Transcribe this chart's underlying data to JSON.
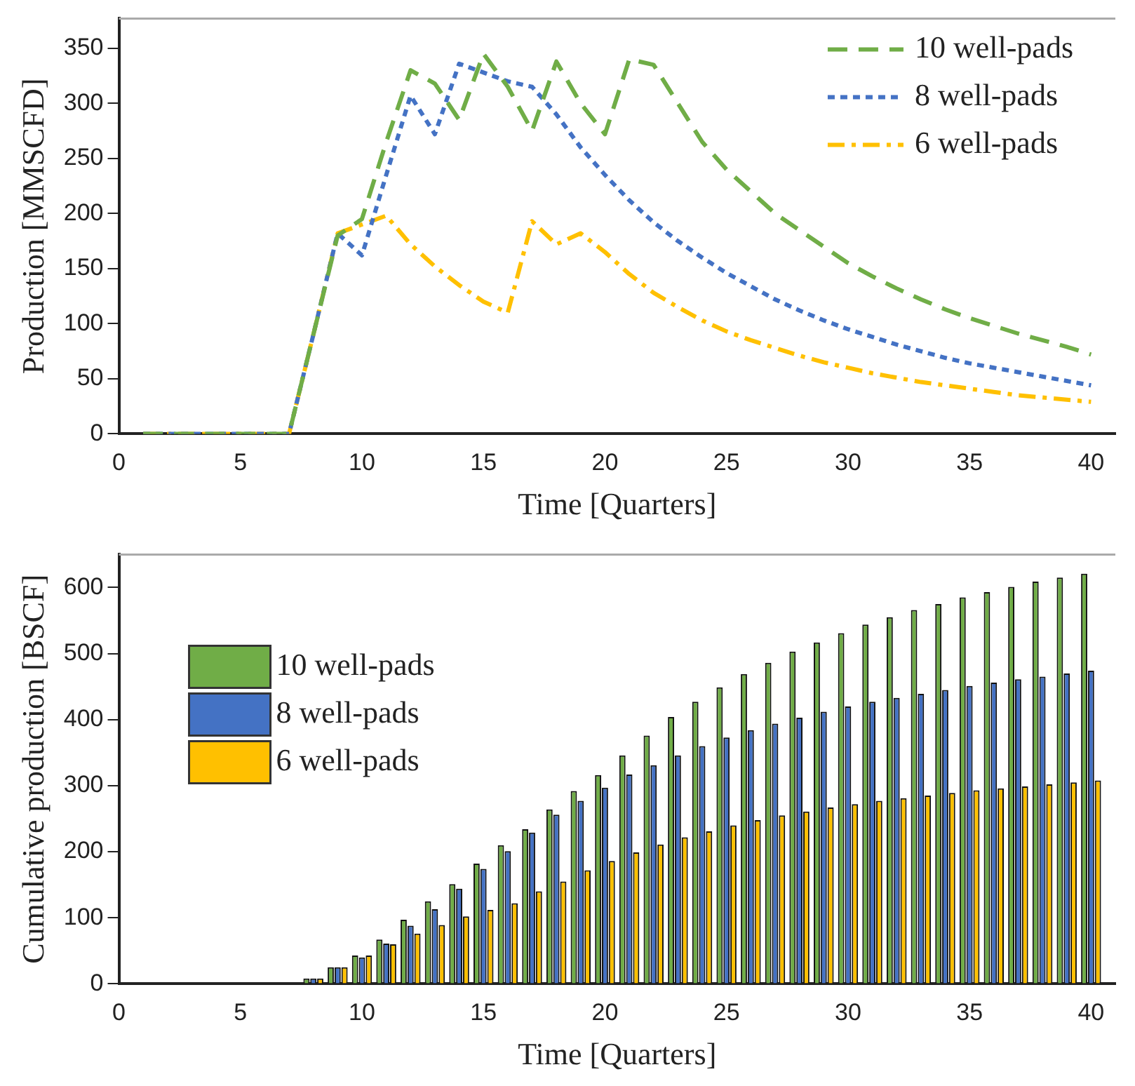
{
  "chart_data": [
    {
      "type": "line",
      "xlabel": "Time [Quarters]",
      "ylabel": "Production [MMSCFD]",
      "xlim": [
        0,
        41
      ],
      "xticks": [
        0,
        5,
        10,
        15,
        20,
        25,
        30,
        35,
        40
      ],
      "ylim": [
        0,
        377
      ],
      "yticks": [
        0,
        50,
        100,
        150,
        200,
        250,
        300,
        350
      ],
      "grid": false,
      "legend": "top right",
      "marker": "none",
      "x": [
        1,
        2,
        3,
        4,
        5,
        6,
        7,
        8,
        9,
        10,
        11,
        12,
        13,
        14,
        15,
        16,
        17,
        18,
        19,
        20,
        21,
        22,
        23,
        24,
        25,
        26,
        27,
        28,
        29,
        30,
        31,
        32,
        33,
        34,
        35,
        36,
        37,
        38,
        39,
        40
      ],
      "series": [
        {
          "name": "10 well-pads",
          "color": "#70ad47",
          "line_style": "dashed",
          "values": [
            0,
            0,
            0,
            0,
            0,
            0,
            0,
            90,
            180,
            195,
            265,
            330,
            318,
            285,
            345,
            315,
            275,
            338,
            300,
            272,
            340,
            335,
            300,
            265,
            240,
            220,
            200,
            185,
            170,
            155,
            143,
            132,
            122,
            113,
            105,
            98,
            91,
            85,
            79,
            72
          ]
        },
        {
          "name": "8 well-pads",
          "color": "#4472c4",
          "line_style": "dotted",
          "values": [
            0,
            0,
            0,
            0,
            0,
            0,
            0,
            90,
            182,
            162,
            235,
            307,
            272,
            336,
            328,
            320,
            315,
            290,
            260,
            235,
            212,
            192,
            175,
            160,
            146,
            134,
            122,
            112,
            103,
            95,
            88,
            81,
            75,
            69,
            64,
            60,
            56,
            52,
            48,
            44
          ]
        },
        {
          "name": "6 well-pads",
          "color": "#ffc000",
          "line_style": "dashdot",
          "values": [
            0,
            0,
            0,
            0,
            0,
            0,
            0,
            90,
            182,
            190,
            198,
            172,
            152,
            135,
            120,
            110,
            193,
            172,
            182,
            165,
            145,
            128,
            115,
            103,
            93,
            85,
            78,
            71,
            65,
            60,
            55,
            51,
            47,
            44,
            41,
            38,
            35,
            33,
            31,
            29
          ]
        }
      ]
    },
    {
      "type": "bar",
      "xlabel": "Time [Quarters]",
      "ylabel": "Cumulative production [BSCF]",
      "xlim": [
        0,
        41
      ],
      "xticks": [
        0,
        5,
        10,
        15,
        20,
        25,
        30,
        35,
        40
      ],
      "ylim": [
        0,
        650
      ],
      "yticks": [
        0,
        100,
        200,
        300,
        400,
        500,
        600
      ],
      "grid": false,
      "legend": "left",
      "x": [
        8,
        9,
        10,
        11,
        12,
        13,
        14,
        15,
        16,
        17,
        18,
        19,
        20,
        21,
        22,
        23,
        24,
        25,
        26,
        27,
        28,
        29,
        30,
        31,
        32,
        33,
        34,
        35,
        36,
        37,
        38,
        39,
        40
      ],
      "series": [
        {
          "name": "10 well-pads",
          "color": "#70ad47",
          "values": [
            8,
            25,
            43,
            67,
            97,
            125,
            151,
            182,
            210,
            234,
            264,
            292,
            316,
            346,
            376,
            404,
            427,
            449,
            469,
            486,
            503,
            517,
            531,
            544,
            555,
            566,
            575,
            585,
            593,
            601,
            609,
            615,
            621
          ]
        },
        {
          "name": "8 well-pads",
          "color": "#4472c4",
          "values": [
            8,
            25,
            40,
            61,
            88,
            113,
            144,
            174,
            201,
            229,
            256,
            277,
            297,
            317,
            331,
            346,
            360,
            373,
            384,
            394,
            403,
            412,
            420,
            427,
            433,
            439,
            445,
            451,
            456,
            461,
            465,
            470,
            474
          ]
        },
        {
          "name": "6 well-pads",
          "color": "#ffc000",
          "values": [
            8,
            25,
            43,
            60,
            76,
            89,
            102,
            112,
            122,
            140,
            155,
            172,
            186,
            199,
            211,
            222,
            231,
            240,
            248,
            255,
            261,
            267,
            272,
            277,
            281,
            285,
            289,
            293,
            296,
            299,
            302,
            305,
            308
          ]
        }
      ]
    }
  ]
}
